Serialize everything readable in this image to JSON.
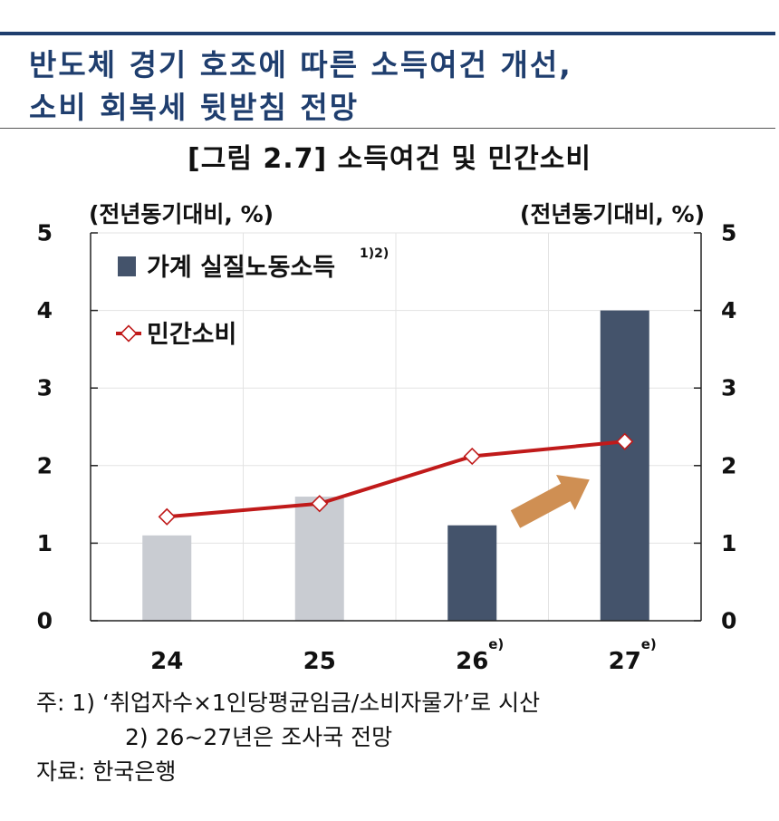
{
  "header": {
    "headline_line1": "반도체 경기 호조에 따른 소득여건 개선,",
    "headline_line2": "소비 회복세 뒷받침 전망"
  },
  "figure": {
    "title": "[그림 2.7] 소득여건 및 민간소비"
  },
  "chart_data": {
    "type": "bar",
    "categories": [
      "24",
      "25",
      "26",
      "27"
    ],
    "category_superscripts": [
      "",
      "",
      "e)",
      "e)"
    ],
    "left_unit_label": "(전년동기대비, %)",
    "right_unit_label": "(전년동기대비, %)",
    "ylim": [
      0,
      5
    ],
    "y_ticks": [
      0,
      1,
      2,
      3,
      4,
      5
    ],
    "grid": true,
    "legend_placement": "top-left",
    "series": [
      {
        "name": "가계 실질노동소득",
        "name_superscript": "1)2)",
        "type": "bar",
        "values": [
          1.1,
          1.6,
          1.23,
          4.0
        ],
        "colors": [
          "#c9ccd2",
          "#c9ccd2",
          "#44536b",
          "#44536b"
        ]
      },
      {
        "name": "민간소비",
        "type": "line",
        "values": [
          1.34,
          1.51,
          2.12,
          2.31
        ],
        "color": "#c01a1a"
      }
    ],
    "annotations": [
      "up-arrow"
    ],
    "arrow_color": "#cf8f53"
  },
  "notes": {
    "note_label": "주:",
    "note1": "1) ‘취업자수×1인당평균임금/소비자물가’로 시산",
    "note2": "2) 26~27년은 조사국 전망",
    "source_label": "자료:",
    "source": "한국은행"
  }
}
